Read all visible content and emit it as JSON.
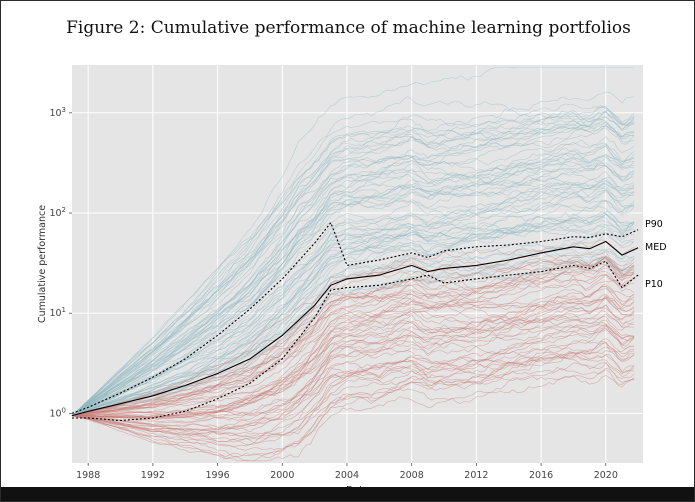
{
  "chart_data": {
    "type": "line",
    "title": "Figure 2: Cumulative performance of machine learning portfolios",
    "xlabel": "Date",
    "ylabel": "Cumulative performance",
    "yscale": "log",
    "xlim": [
      1987.0,
      2022.3
    ],
    "ylim": [
      0.32,
      3000
    ],
    "x_ticks": [
      "1988",
      "1992",
      "1996",
      "2000",
      "2004",
      "2008",
      "2012",
      "2016",
      "2020"
    ],
    "x_tick_values": [
      1988,
      1992,
      1996,
      2000,
      2004,
      2008,
      2012,
      2016,
      2020
    ],
    "y_ticks": [
      "10^0",
      "10^1",
      "10^2",
      "10^3"
    ],
    "y_tick_values": [
      1,
      10,
      100,
      1000
    ],
    "grid": true,
    "background": "#e5e5e5",
    "colors": {
      "long_portfolios": "#8fb9c1",
      "short_portfolios": "#c77b73",
      "percentile_lines": "#000000"
    },
    "annotations": [
      "P90",
      "MED",
      "P10"
    ],
    "series": [
      {
        "name": "P90",
        "style": "dashed",
        "x": [
          1987.0,
          1988,
          1990,
          1992,
          1994,
          1996,
          1998,
          2000,
          2002,
          2003,
          2004,
          2006,
          2008,
          2009,
          2010,
          2012,
          2014,
          2016,
          2018,
          2019,
          2020,
          2021,
          2022
        ],
        "values": [
          1.0,
          1.15,
          1.6,
          2.3,
          3.5,
          6.0,
          11,
          22,
          50,
          80,
          30,
          34,
          40,
          36,
          42,
          46,
          48,
          52,
          58,
          57,
          62,
          58,
          68
        ]
      },
      {
        "name": "MED",
        "style": "solid",
        "x": [
          1987.0,
          1988,
          1990,
          1992,
          1994,
          1996,
          1998,
          2000,
          2002,
          2003,
          2004,
          2006,
          2008,
          2009,
          2010,
          2012,
          2014,
          2016,
          2018,
          2019,
          2020,
          2021,
          2022
        ],
        "values": [
          0.95,
          1.05,
          1.25,
          1.5,
          1.9,
          2.5,
          3.5,
          6.0,
          12,
          19,
          22,
          24,
          30,
          26,
          28,
          30,
          34,
          40,
          46,
          44,
          52,
          38,
          45
        ]
      },
      {
        "name": "P10",
        "style": "dashed",
        "x": [
          1987.0,
          1988,
          1990,
          1992,
          1994,
          1996,
          1998,
          2000,
          2002,
          2003,
          2004,
          2006,
          2008,
          2009,
          2010,
          2012,
          2014,
          2016,
          2018,
          2019,
          2020,
          2021,
          2022
        ],
        "values": [
          0.9,
          0.9,
          0.85,
          0.9,
          1.05,
          1.4,
          2.0,
          3.5,
          9,
          17,
          18,
          19,
          22,
          24,
          20,
          22,
          24,
          26,
          30,
          28,
          33,
          18,
          24
        ]
      }
    ]
  }
}
